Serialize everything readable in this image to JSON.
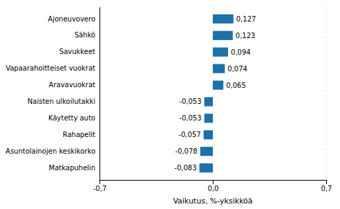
{
  "chart_data": {
    "type": "bar",
    "orientation": "horizontal",
    "xlabel": "Vaikutus, %-yksikköä",
    "categories": [
      "Matkapuhelin",
      "Asuntolainojen keskikorko",
      "Rahapelit",
      "Käytetty auto",
      "Naisten ulkoilutakki",
      "Aravavuokrat",
      "Vapaarahoitteiset vuokrat",
      "Savukkeet",
      "Sähkö",
      "Ajoneuvovero"
    ],
    "values": [
      -0.083,
      -0.078,
      -0.057,
      -0.053,
      -0.053,
      0.065,
      0.074,
      0.094,
      0.123,
      0.127
    ],
    "value_labels": [
      "-0,083",
      "-0,078",
      "-0,057",
      "-0,053",
      "-0,053",
      "0,065",
      "0,074",
      "0,094",
      "0,123",
      "0,127"
    ],
    "data_labels": true,
    "color": "#1F6FA8",
    "xlim": [
      -0.7,
      0.7
    ],
    "xticks": [
      {
        "value": -0.7,
        "label": "-0,7"
      },
      {
        "value": 0.0,
        "label": "0,0"
      },
      {
        "value": 0.7,
        "label": "0,7"
      }
    ],
    "grid": true
  }
}
